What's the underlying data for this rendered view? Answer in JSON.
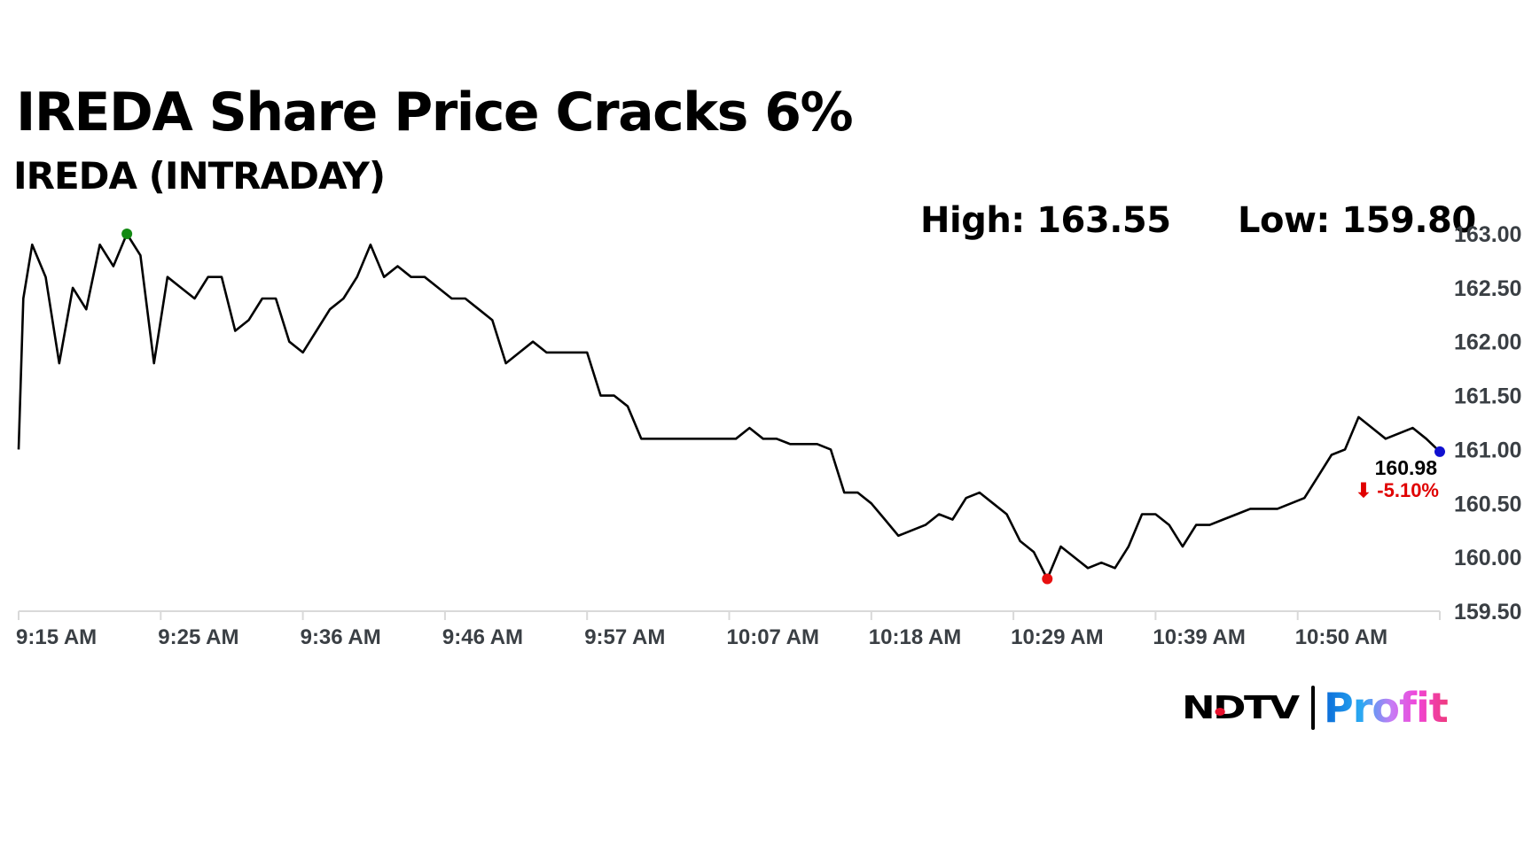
{
  "header": {
    "title": "IREDA Share Price Cracks 6%",
    "subtitle": "IREDA (INTRADAY)"
  },
  "stats": {
    "high_label": "High: 163.55",
    "low_label": "Low: 159.80"
  },
  "logo": {
    "brand": "NDTV",
    "product": "Profit"
  },
  "chart_data": {
    "type": "line",
    "title": "IREDA (INTRADAY)",
    "xlabel": "",
    "ylabel": "",
    "xlim": [
      "9:15",
      "11:00"
    ],
    "ylim": [
      159.5,
      163.0
    ],
    "y_ticks": [
      "163.00",
      "162.50",
      "162.00",
      "161.50",
      "161.00",
      "160.50",
      "160.00",
      "159.50"
    ],
    "y_tick_values": [
      163.0,
      162.5,
      162.0,
      161.5,
      161.0,
      160.5,
      160.0,
      159.5
    ],
    "x_tick_labels": [
      "9:15 AM",
      "9:25 AM",
      "9:36 AM",
      "9:46 AM",
      "9:57 AM",
      "10:07 AM",
      "10:18 AM",
      "10:29 AM",
      "10:39 AM",
      "10:50 AM"
    ],
    "grid": false,
    "line_color": "#000000",
    "x": [
      "9:15",
      "9:15",
      "9:16",
      "9:17",
      "9:18",
      "9:19",
      "9:20",
      "9:21",
      "9:22",
      "9:23",
      "9:24",
      "9:25",
      "9:26",
      "9:27",
      "9:28",
      "9:29",
      "9:30",
      "9:31",
      "9:32",
      "9:33",
      "9:34",
      "9:35",
      "9:36",
      "9:37",
      "9:38",
      "9:39",
      "9:40",
      "9:41",
      "9:42",
      "9:43",
      "9:44",
      "9:45",
      "9:46",
      "9:47",
      "9:48",
      "9:49",
      "9:50",
      "9:51",
      "9:52",
      "9:53",
      "9:54",
      "9:55",
      "9:56",
      "9:57",
      "9:58",
      "9:59",
      "10:00",
      "10:01",
      "10:02",
      "10:03",
      "10:04",
      "10:05",
      "10:06",
      "10:07",
      "10:08",
      "10:09",
      "10:10",
      "10:11",
      "10:12",
      "10:13",
      "10:14",
      "10:15",
      "10:16",
      "10:17",
      "10:18",
      "10:19",
      "10:20",
      "10:21",
      "10:22",
      "10:23",
      "10:24",
      "10:25",
      "10:26",
      "10:27",
      "10:28",
      "10:29",
      "10:30",
      "10:31",
      "10:32",
      "10:33",
      "10:34",
      "10:35",
      "10:36",
      "10:37",
      "10:38",
      "10:39",
      "10:40",
      "10:41",
      "10:42",
      "10:43",
      "10:44",
      "10:45",
      "10:46",
      "10:47",
      "10:48",
      "10:49",
      "10:50",
      "10:51",
      "10:52",
      "10:53",
      "10:54",
      "10:55",
      "10:56",
      "10:57",
      "10:58",
      "10:59",
      "11:00"
    ],
    "values": [
      161.0,
      162.4,
      162.9,
      162.6,
      161.8,
      162.5,
      162.3,
      162.9,
      162.7,
      163.0,
      162.8,
      161.8,
      162.6,
      162.5,
      162.4,
      162.6,
      162.6,
      162.1,
      162.2,
      162.4,
      162.4,
      162.0,
      161.9,
      162.1,
      162.3,
      162.4,
      162.6,
      162.9,
      162.6,
      162.7,
      162.6,
      162.6,
      162.5,
      162.4,
      162.4,
      162.3,
      162.2,
      161.8,
      161.9,
      162.0,
      161.9,
      161.9,
      161.9,
      161.9,
      161.5,
      161.5,
      161.4,
      161.1,
      161.1,
      161.1,
      161.1,
      161.1,
      161.1,
      161.1,
      161.1,
      161.2,
      161.1,
      161.1,
      161.05,
      161.05,
      161.05,
      161.0,
      160.6,
      160.6,
      160.5,
      160.35,
      160.2,
      160.25,
      160.3,
      160.4,
      160.35,
      160.55,
      160.6,
      160.5,
      160.4,
      160.15,
      160.05,
      159.8,
      160.1,
      160.0,
      159.9,
      159.95,
      159.9,
      160.1,
      160.4,
      160.4,
      160.3,
      160.1,
      160.3,
      160.3,
      160.35,
      160.4,
      160.45,
      160.45,
      160.45,
      160.5,
      160.55,
      160.75,
      160.95,
      161.0,
      161.3,
      161.2,
      161.1,
      161.15,
      161.2,
      161.1,
      160.98
    ],
    "markers": {
      "high": {
        "x": "9:23",
        "value": 163.0,
        "color": "#138a13"
      },
      "low": {
        "x": "10:31",
        "value": 159.8,
        "color": "#e81010"
      },
      "last": {
        "x": "11:00",
        "value": 160.98,
        "color": "#1010d0"
      }
    },
    "last_price_label": "160.98",
    "change_label": "⬇ -5.10%",
    "change_color": "#e00000"
  }
}
